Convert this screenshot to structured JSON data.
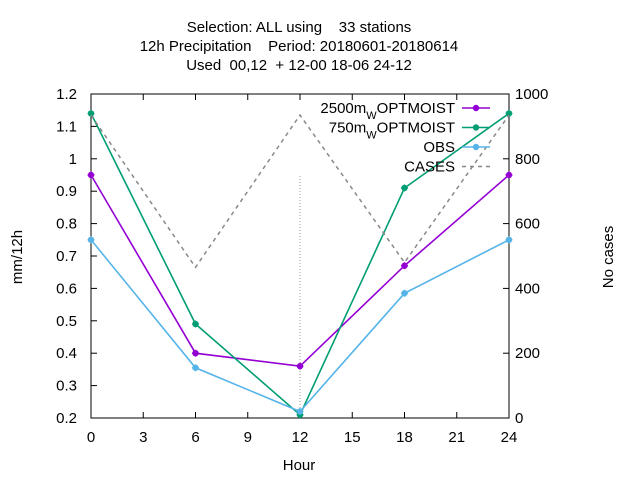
{
  "chart_data": {
    "type": "line",
    "title_lines": [
      "Selection: ALL using    33 stations",
      "12h Precipitation    Period: 20180601-20180614",
      "Used  00,12  + 12-00 18-06 24-12"
    ],
    "xlabel": "Hour",
    "ylabel": "mm/12h",
    "y2label": "No cases",
    "xlim": [
      0,
      24
    ],
    "ylim": [
      0.2,
      1.2
    ],
    "y2lim": [
      0,
      1000
    ],
    "xticks": [
      "0",
      "3",
      "6",
      "9",
      "12",
      "15",
      "18",
      "21",
      "24"
    ],
    "yticks": [
      "0.2",
      "0.3",
      "0.4",
      "0.5",
      "0.6",
      "0.7",
      "0.8",
      "0.9",
      "1",
      "1.1",
      "1.2"
    ],
    "y2ticks": [
      "0",
      "200",
      "400",
      "600",
      "800",
      "1000"
    ],
    "legend_position": "top-right",
    "series": [
      {
        "name": "2500m W OPTMOIST",
        "label_prefix": "2500m",
        "label_sub": "W",
        "label_suffix": "OPTMOIST",
        "axis": "y1",
        "color": "#9400d3",
        "style": "solid",
        "x": [
          0,
          6,
          12,
          18,
          24
        ],
        "values": [
          0.95,
          0.4,
          0.36,
          0.67,
          0.95
        ]
      },
      {
        "name": "750m W OPTMOIST",
        "label_prefix": "750m",
        "label_sub": "W",
        "label_suffix": "OPTMOIST",
        "axis": "y1",
        "color": "#009e73",
        "style": "solid",
        "x": [
          0,
          6,
          12,
          18,
          24
        ],
        "values": [
          1.14,
          0.49,
          0.21,
          0.91,
          1.14
        ]
      },
      {
        "name": "OBS",
        "label_prefix": "OBS",
        "label_sub": "",
        "label_suffix": "",
        "axis": "y1",
        "color": "#56b4e9",
        "style": "solid",
        "x": [
          0,
          6,
          12,
          18,
          24
        ],
        "values": [
          0.75,
          0.355,
          0.22,
          0.585,
          0.75
        ]
      },
      {
        "name": "CASES",
        "label_prefix": "CASES",
        "label_sub": "",
        "label_suffix": "",
        "axis": "y2",
        "color": "#888888",
        "style": "dashed",
        "x": [
          0,
          6,
          12,
          18,
          24
        ],
        "values": [
          935,
          465,
          935,
          480,
          935
        ]
      }
    ]
  }
}
